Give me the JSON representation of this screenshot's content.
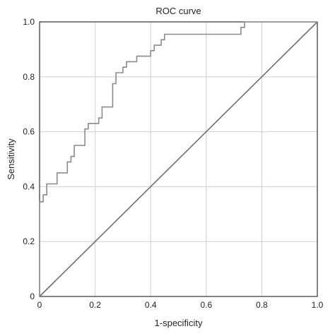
{
  "chart_data": {
    "type": "line",
    "title": "ROC curve",
    "xlabel": "1-specificity",
    "ylabel": "Sensitivity",
    "xlim": [
      0,
      1
    ],
    "ylim": [
      0,
      1
    ],
    "x_ticks": [
      0,
      0.2,
      0.4,
      0.6,
      0.8,
      1.0
    ],
    "y_ticks": [
      0,
      0.2,
      0.4,
      0.6,
      0.8,
      1.0
    ],
    "x_tick_labels": [
      "0",
      "0.2",
      "0.4",
      "0.6",
      "0.8",
      "1.0"
    ],
    "y_tick_labels": [
      "0",
      "0.2",
      "0.4",
      "0.6",
      "0.8",
      "1.0"
    ],
    "grid": true,
    "colors": {
      "curve": "#8a8a8a",
      "diagonal": "#6f6f6f",
      "grid": "#cfcfcf",
      "frame": "#333333"
    },
    "series": [
      {
        "x": [
          0.0,
          0.0,
          0.013,
          0.013,
          0.026,
          0.026,
          0.063,
          0.063,
          0.1,
          0.1,
          0.113,
          0.113,
          0.125,
          0.125,
          0.163,
          0.163,
          0.175,
          0.175,
          0.213,
          0.213,
          0.225,
          0.225,
          0.263,
          0.263,
          0.275,
          0.275,
          0.3,
          0.3,
          0.313,
          0.313,
          0.35,
          0.35,
          0.4,
          0.4,
          0.413,
          0.413,
          0.438,
          0.438,
          0.45,
          0.45,
          0.725,
          0.725,
          0.738,
          0.738,
          1.0
        ],
        "y": [
          0.0,
          0.345,
          0.345,
          0.37,
          0.37,
          0.41,
          0.41,
          0.45,
          0.45,
          0.49,
          0.49,
          0.51,
          0.51,
          0.55,
          0.55,
          0.61,
          0.61,
          0.63,
          0.63,
          0.65,
          0.65,
          0.69,
          0.69,
          0.775,
          0.775,
          0.815,
          0.815,
          0.835,
          0.835,
          0.855,
          0.855,
          0.875,
          0.875,
          0.895,
          0.895,
          0.915,
          0.915,
          0.935,
          0.935,
          0.955,
          0.955,
          0.98,
          0.98,
          1.0,
          1.0
        ]
      },
      {
        "x": [
          0,
          1
        ],
        "y": [
          0,
          1
        ]
      }
    ]
  }
}
